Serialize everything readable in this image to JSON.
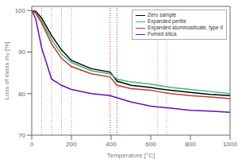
{
  "chart_data": {
    "type": "line",
    "title": "",
    "xlabel": "Temperature [°C]",
    "ylabel": "Loss of mass m₀ [%]",
    "x": [
      0,
      20,
      50,
      100,
      150,
      200,
      300,
      395,
      430,
      500,
      600,
      635,
      700,
      800,
      900,
      1000
    ],
    "series": [
      {
        "name": "Zero sample",
        "color": "#000000",
        "values": [
          100,
          99.8,
          98.2,
          94.0,
          90.5,
          88.0,
          86.0,
          85.2,
          83.0,
          82.0,
          81.5,
          81.2,
          80.8,
          80.3,
          79.8,
          79.5
        ]
      },
      {
        "name": "Expanded perlite",
        "color": "#3cb878",
        "values": [
          100,
          99.5,
          97.5,
          93.0,
          89.5,
          87.5,
          85.5,
          84.8,
          83.5,
          82.8,
          82.3,
          82.0,
          81.5,
          81.0,
          80.5,
          80.0
        ]
      },
      {
        "name": "Expanded aluminosilicate, type II",
        "color": "#c0392b",
        "values": [
          100,
          99.3,
          97.0,
          92.0,
          88.5,
          86.5,
          84.8,
          84.0,
          82.0,
          81.2,
          80.8,
          80.5,
          80.0,
          79.5,
          79.2,
          78.8
        ]
      },
      {
        "name": "Fumed silica",
        "color": "#6a0dad",
        "values": [
          100,
          98.0,
          91.0,
          83.5,
          82.0,
          81.0,
          80.0,
          79.5,
          79.0,
          78.0,
          77.0,
          76.8,
          76.5,
          76.0,
          75.8,
          75.5
        ]
      }
    ],
    "vlines": [
      {
        "values": [
          50,
          100,
          150,
          200
        ],
        "color": "#999999",
        "line_style": "dotted"
      },
      {
        "values": [
          395,
          430
        ],
        "color": "#c0392b",
        "line_style": "dotted"
      },
      {
        "values": [
          635,
          680
        ],
        "color": "#c8a050",
        "line_style": "dotted"
      }
    ],
    "xlim": [
      0,
      1000
    ],
    "ylim": [
      70,
      101
    ],
    "xticks": [
      0,
      200,
      400,
      600,
      800,
      1000
    ],
    "yticks": [
      70,
      80,
      90,
      100
    ],
    "grid": false,
    "legend": "upper right"
  }
}
